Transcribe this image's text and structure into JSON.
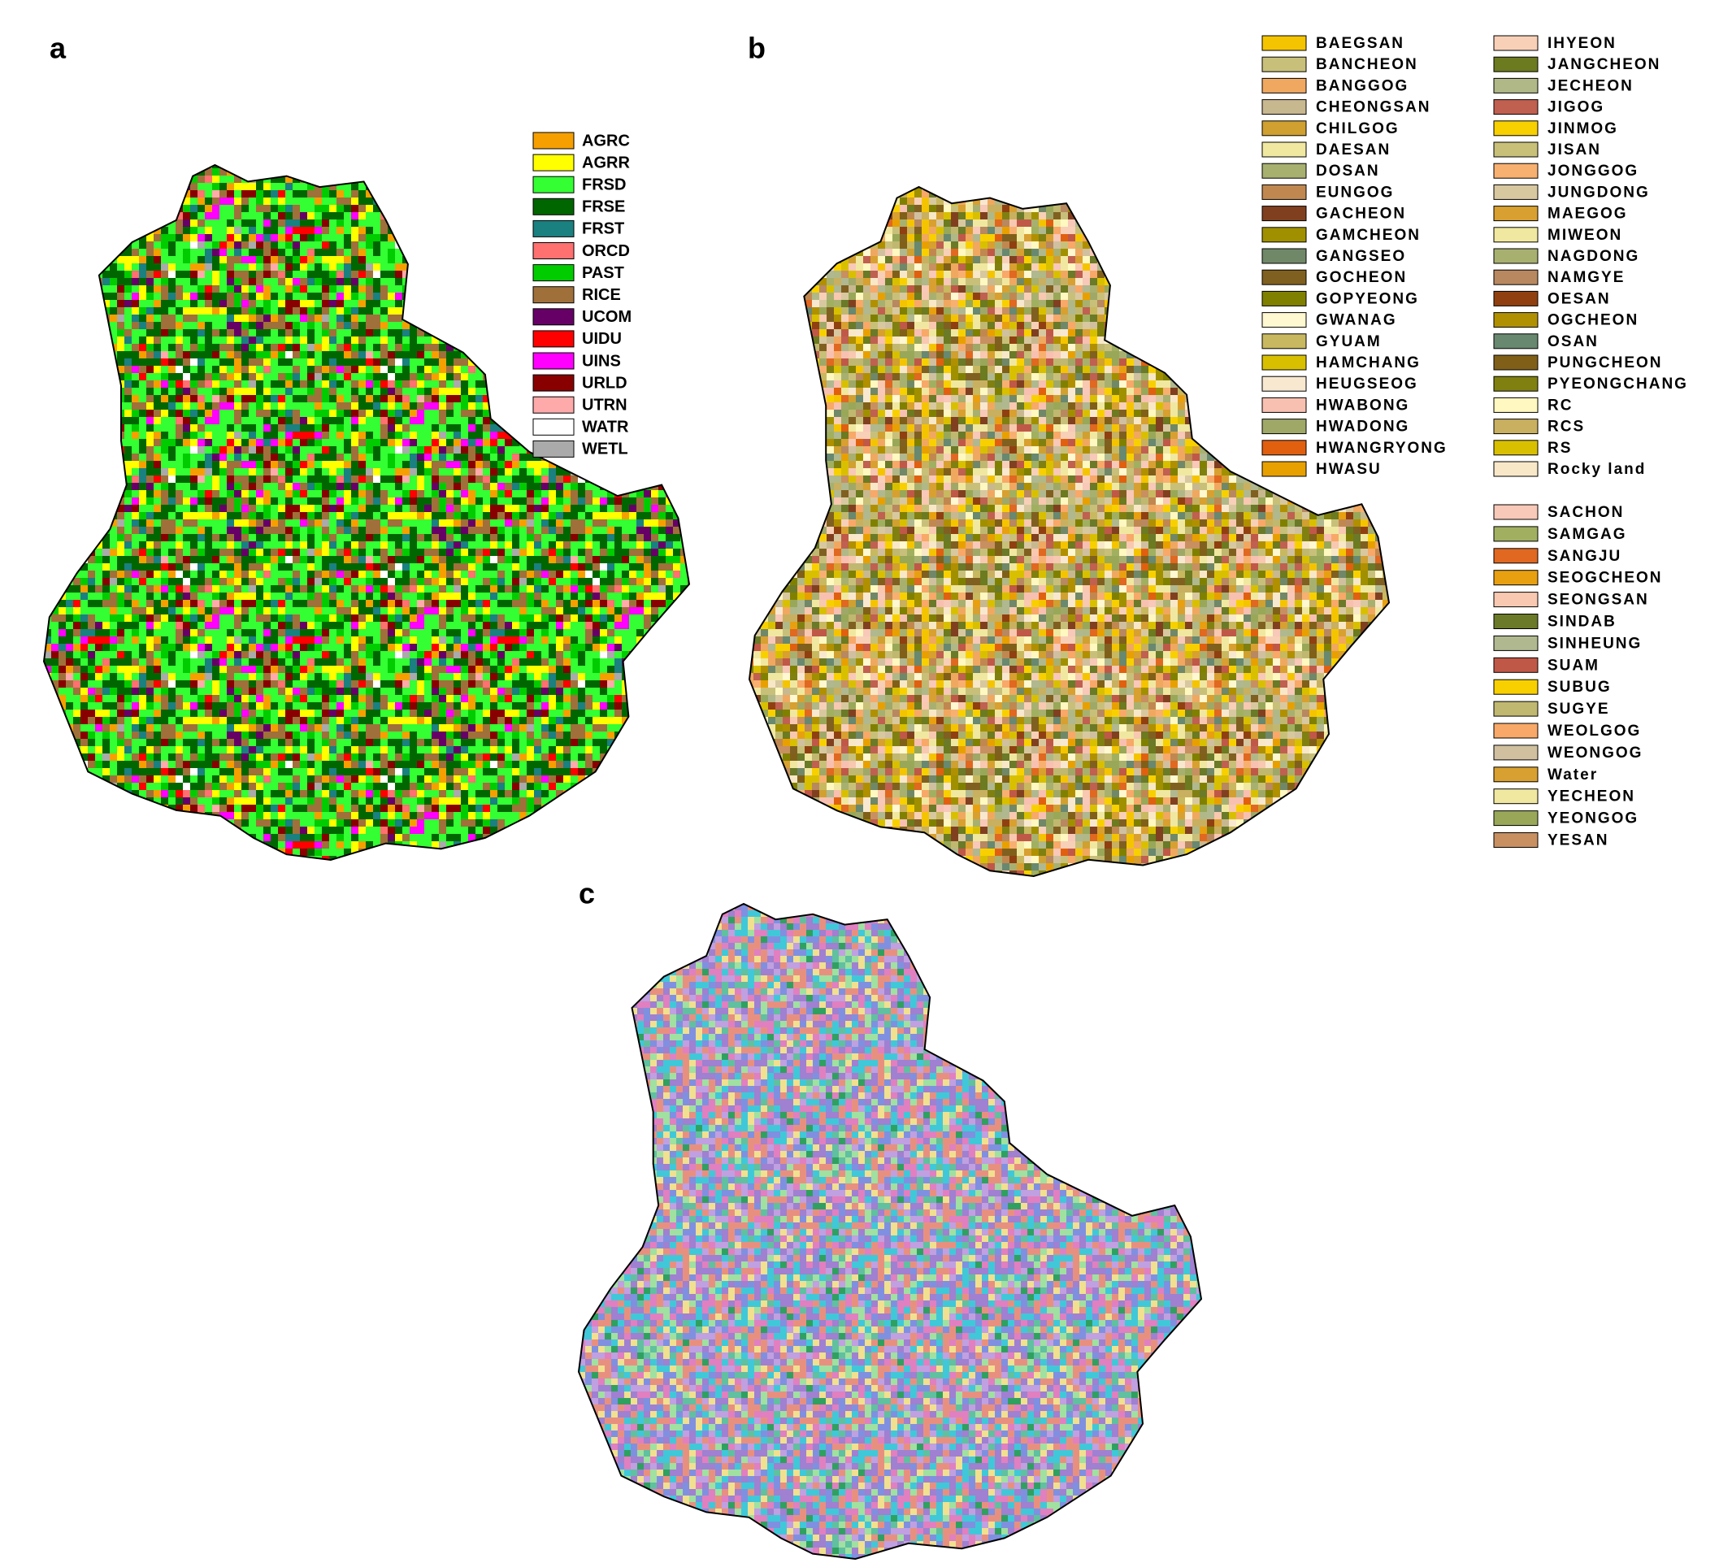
{
  "panels": [
    {
      "label": "a",
      "legend": [
        {
          "name": "AGRC",
          "color": "#f5a000"
        },
        {
          "name": "AGRR",
          "color": "#ffff00"
        },
        {
          "name": "FRSD",
          "color": "#33ff33"
        },
        {
          "name": "FRSE",
          "color": "#006600"
        },
        {
          "name": "FRST",
          "color": "#1a8080"
        },
        {
          "name": "ORCD",
          "color": "#ff7070"
        },
        {
          "name": "PAST",
          "color": "#00cc00"
        },
        {
          "name": "RICE",
          "color": "#a0703a"
        },
        {
          "name": "UCOM",
          "color": "#660066"
        },
        {
          "name": "UIDU",
          "color": "#ff0000"
        },
        {
          "name": "UINS",
          "color": "#ff00ff"
        },
        {
          "name": "URLD",
          "color": "#880000"
        },
        {
          "name": "UTRN",
          "color": "#ffaaaa"
        },
        {
          "name": "WATR",
          "color": "#ffffff"
        },
        {
          "name": "WETL",
          "color": "#aaaaaa"
        }
      ]
    },
    {
      "label": "b",
      "legend_columns": [
        [
          {
            "name": "BAEGSAN",
            "color": "#f5c400"
          },
          {
            "name": "BANCHEON",
            "color": "#c8c07a"
          },
          {
            "name": "BANGGOG",
            "color": "#f0a860"
          },
          {
            "name": "CHEONGSAN",
            "color": "#c8b890"
          },
          {
            "name": "CHILGOG",
            "color": "#d0a030"
          },
          {
            "name": "DAESAN",
            "color": "#f0e8a0"
          },
          {
            "name": "DOSAN",
            "color": "#a8b070"
          },
          {
            "name": "EUNGOG",
            "color": "#c08850"
          },
          {
            "name": "GACHEON",
            "color": "#804020"
          },
          {
            "name": "GAMCHEON",
            "color": "#a09000"
          },
          {
            "name": "GANGSEO",
            "color": "#708868"
          },
          {
            "name": "GOCHEON",
            "color": "#806020"
          },
          {
            "name": "GOPYEONG",
            "color": "#808000"
          },
          {
            "name": "GWANAG",
            "color": "#fff8d0"
          },
          {
            "name": "GYUAM",
            "color": "#c8b860"
          },
          {
            "name": "HAMCHANG",
            "color": "#d8c000"
          },
          {
            "name": "HEUGSEOG",
            "color": "#f8e8d0"
          },
          {
            "name": "HWABONG",
            "color": "#f8c0b0"
          },
          {
            "name": "HWADONG",
            "color": "#a0a868"
          },
          {
            "name": "HWANGRYONG",
            "color": "#e06010"
          },
          {
            "name": "HWASU",
            "color": "#e8a000"
          }
        ],
        [
          {
            "name": "IHYEON",
            "color": "#f8d0b8"
          },
          {
            "name": "JANGCHEON",
            "color": "#6c7a20"
          },
          {
            "name": "JECHEON",
            "color": "#b0b888"
          },
          {
            "name": "JIGOG",
            "color": "#c06050"
          },
          {
            "name": "JINMOG",
            "color": "#f8d000"
          },
          {
            "name": "JISAN",
            "color": "#c8c078"
          },
          {
            "name": "JONGGOG",
            "color": "#f8b070"
          },
          {
            "name": "JUNGDONG",
            "color": "#d8c8a0"
          },
          {
            "name": "MAEGOG",
            "color": "#d8a030"
          },
          {
            "name": "MIWEON",
            "color": "#f0e8a0"
          },
          {
            "name": "NAGDONG",
            "color": "#a8b070"
          },
          {
            "name": "NAMGYE",
            "color": "#b88860"
          },
          {
            "name": "OESAN",
            "color": "#904010"
          },
          {
            "name": "OGCHEON",
            "color": "#b09000"
          },
          {
            "name": "OSAN",
            "color": "#688870"
          },
          {
            "name": "PUNGCHEON",
            "color": "#806018"
          },
          {
            "name": "PYEONGCHANG",
            "color": "#808010"
          },
          {
            "name": "RC",
            "color": "#fff8c0"
          },
          {
            "name": "RCS",
            "color": "#c8b060"
          },
          {
            "name": "RS",
            "color": "#d8c000"
          },
          {
            "name": "Rocky land",
            "color": "#f8e8c8"
          }
        ],
        [
          {
            "name": "SACHON",
            "color": "#f8c8b8"
          },
          {
            "name": "SAMGAG",
            "color": "#a0b060"
          },
          {
            "name": "SANGJU",
            "color": "#e06820"
          },
          {
            "name": "SEOGCHEON",
            "color": "#e8a010"
          },
          {
            "name": "SEONGSAN",
            "color": "#f8c8b0"
          },
          {
            "name": "SINDAB",
            "color": "#6a7a28"
          },
          {
            "name": "SINHEUNG",
            "color": "#b0b890"
          },
          {
            "name": "SUAM",
            "color": "#c05848"
          },
          {
            "name": "SUBUG",
            "color": "#f8d000"
          },
          {
            "name": "SUGYE",
            "color": "#c0b870"
          },
          {
            "name": "WEOLGOG",
            "color": "#f8a868"
          },
          {
            "name": "WEONGOG",
            "color": "#d0c0a0"
          },
          {
            "name": "Water",
            "color": "#d8a030"
          },
          {
            "name": "YECHEON",
            "color": "#f0e8a0"
          },
          {
            "name": "YEONGOG",
            "color": "#98a858"
          },
          {
            "name": "YESAN",
            "color": "#c89060"
          }
        ]
      ]
    },
    {
      "label": "c"
    }
  ]
}
